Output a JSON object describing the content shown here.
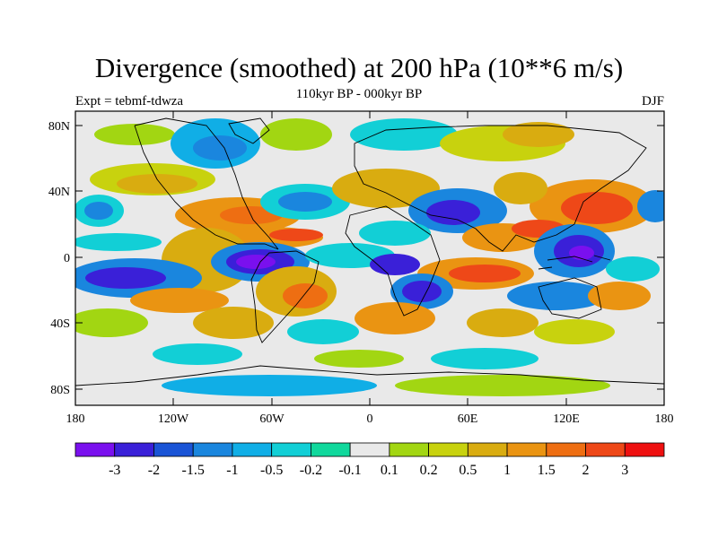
{
  "title": "Divergence (smoothed) at 200 hPa (10**6 m/s)",
  "subtitle": "110kyr BP - 000kyr BP",
  "left_string": "Expt = tebmf-tdwza",
  "right_string": "DJF",
  "lat_ticks": [
    "80N",
    "40N",
    "0",
    "40S",
    "80S"
  ],
  "lon_ticks": [
    "180",
    "120W",
    "60W",
    "0",
    "60E",
    "120E",
    "180"
  ],
  "colorbar": {
    "colors": [
      "#7a10ee",
      "#3a20d8",
      "#1a54d6",
      "#1a86de",
      "#10aee6",
      "#12cfd6",
      "#10d89c",
      "#e9e9e9",
      "#a2d612",
      "#c8d20e",
      "#d9ac10",
      "#ea9412",
      "#ee6e12",
      "#ee4818",
      "#ee1010"
    ],
    "labels": [
      "-3",
      "-2",
      "-1.5",
      "-1",
      "-0.5",
      "-0.2",
      "-0.1",
      "0.1",
      "0.2",
      "0.5",
      "1",
      "1.5",
      "2",
      "3"
    ]
  }
}
